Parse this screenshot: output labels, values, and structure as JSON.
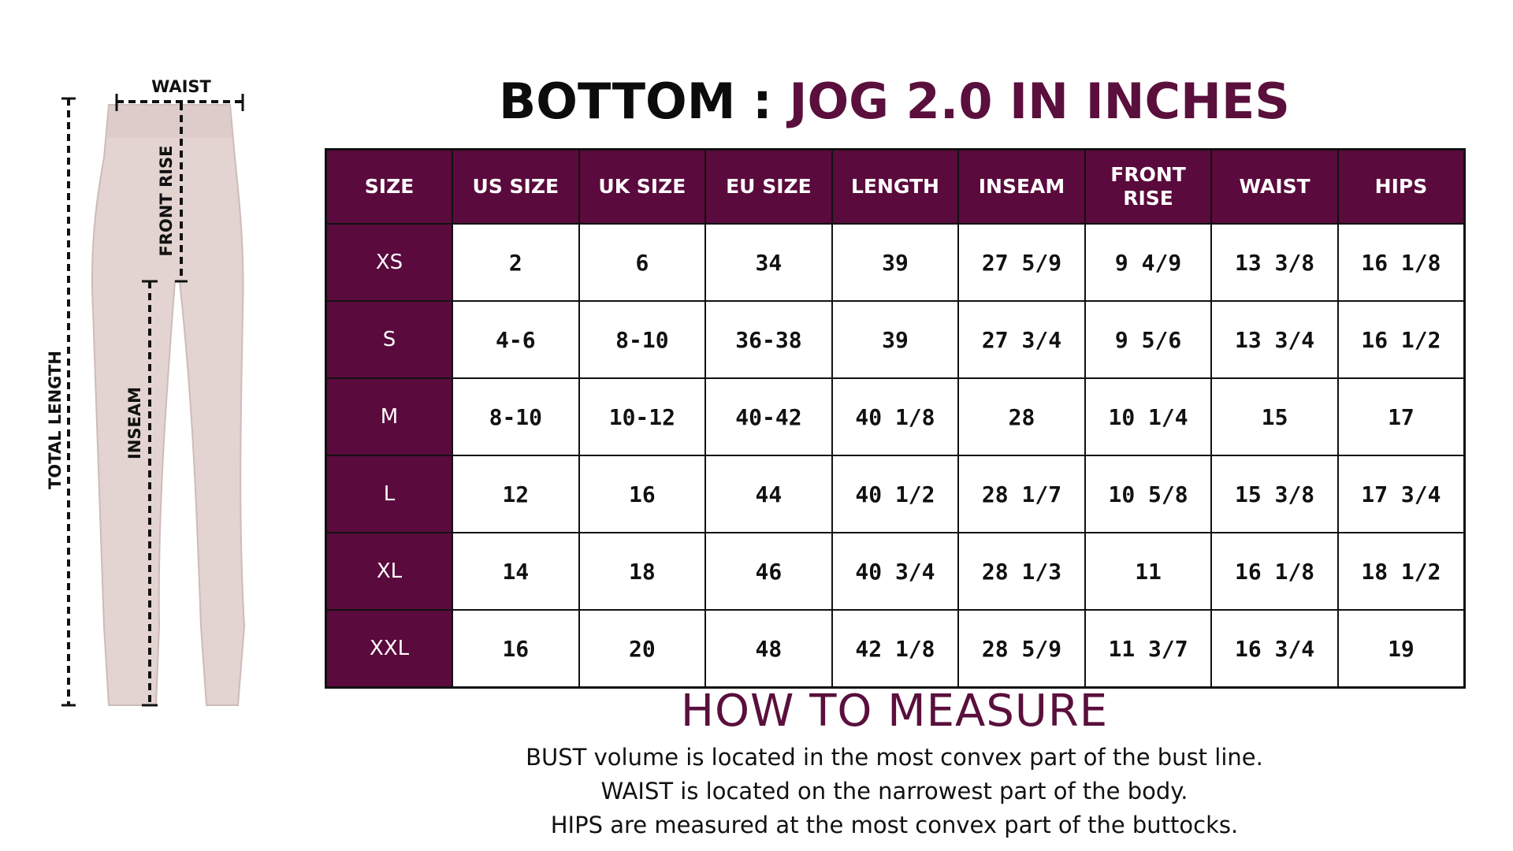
{
  "figure": {
    "labels": {
      "waist": "WAIST",
      "front_rise": "FRONT RISE",
      "total_length": "TOTAL LENGTH",
      "inseam": "INSEAM"
    }
  },
  "title": {
    "part1": "BOTTOM : ",
    "part2": "JOG 2.0 IN INCHES"
  },
  "table": {
    "headers": [
      "SIZE",
      "US SIZE",
      "UK SIZE",
      "EU SIZE",
      "LENGTH",
      "INSEAM",
      "FRONT RISE",
      "WAIST",
      "HIPS"
    ],
    "rows": [
      [
        "XS",
        "2",
        "6",
        "34",
        "39",
        "27 5/9",
        "9 4/9",
        "13 3/8",
        "16 1/8"
      ],
      [
        "S",
        "4-6",
        "8-10",
        "36-38",
        "39",
        "27 3/4",
        "9 5/6",
        "13 3/4",
        "16 1/2"
      ],
      [
        "M",
        "8-10",
        "10-12",
        "40-42",
        "40 1/8",
        "28",
        "10 1/4",
        "15",
        "17"
      ],
      [
        "L",
        "12",
        "16",
        "44",
        "40 1/2",
        "28 1/7",
        "10 5/8",
        "15 3/8",
        "17 3/4"
      ],
      [
        "XL",
        "14",
        "18",
        "46",
        "40 3/4",
        "28 1/3",
        "11",
        "16 1/8",
        "18 1/2"
      ],
      [
        "XXL",
        "16",
        "20",
        "48",
        "42 1/8",
        "28 5/9",
        "11 3/7",
        "16 3/4",
        "19"
      ]
    ]
  },
  "how_to_measure": {
    "title": "HOW TO MEASURE",
    "lines": [
      "BUST volume is located in the most convex part of the bust line.",
      "WAIST is located on the narrowest part of the body.",
      "HIPS are measured at the most convex part of the buttocks."
    ]
  },
  "colors": {
    "accent": "#5a0a3c",
    "garment": "#e2d2d0"
  }
}
